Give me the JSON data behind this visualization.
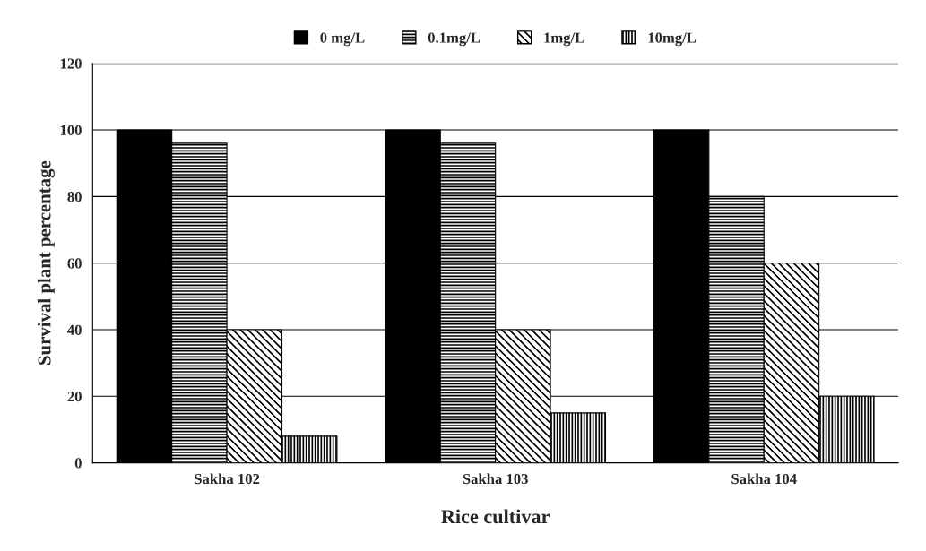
{
  "chart_data": {
    "type": "bar",
    "xlabel": "Rice cultivar",
    "ylabel": "Survival plant percentage",
    "categories": [
      "Sakha 102",
      "Sakha 103",
      "Sakha 104"
    ],
    "series": [
      {
        "name": "0 mg/L",
        "color": "#000000",
        "values": [
          100,
          100,
          100
        ]
      },
      {
        "name": "0.1mg/L",
        "color": "#000000",
        "values": [
          96,
          96,
          80
        ]
      },
      {
        "name": "1mg/L",
        "color": "#000000",
        "values": [
          40,
          40,
          60
        ]
      },
      {
        "name": "10mg/L",
        "color": "#000000",
        "values": [
          8,
          15,
          20
        ]
      }
    ],
    "ylim": [
      0,
      120
    ],
    "yticks": [
      0,
      20,
      40,
      60,
      80,
      100,
      120
    ],
    "grid": "y",
    "legend": "top"
  }
}
